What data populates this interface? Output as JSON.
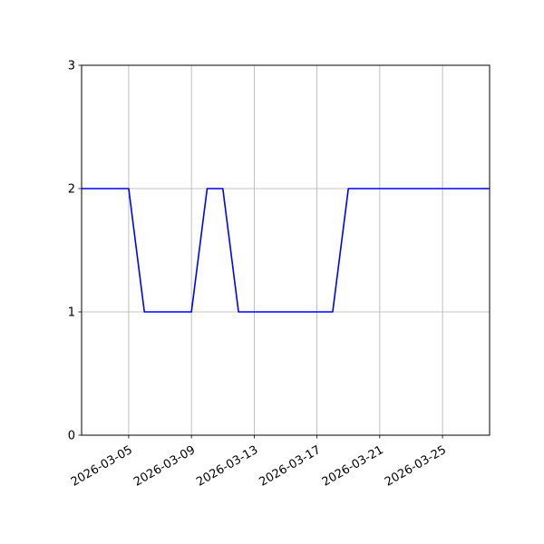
{
  "chart_data": {
    "type": "line",
    "title": "",
    "xlabel": "",
    "ylabel": "",
    "grid": true,
    "x_ticks": [
      "2026-03-05",
      "2026-03-09",
      "2026-03-13",
      "2026-03-17",
      "2026-03-21",
      "2026-03-25"
    ],
    "y_ticks": [
      "0",
      "1",
      "2",
      "3"
    ],
    "xlim": [
      "2026-03-02",
      "2026-03-28"
    ],
    "ylim": [
      0,
      3
    ],
    "series": [
      {
        "color": "#0000ff",
        "x": [
          "2026-03-02",
          "2026-03-03",
          "2026-03-04",
          "2026-03-05",
          "2026-03-06",
          "2026-03-07",
          "2026-03-08",
          "2026-03-09",
          "2026-03-10",
          "2026-03-11",
          "2026-03-12",
          "2026-03-13",
          "2026-03-14",
          "2026-03-15",
          "2026-03-16",
          "2026-03-17",
          "2026-03-18",
          "2026-03-19",
          "2026-03-20",
          "2026-03-21",
          "2026-03-22",
          "2026-03-23",
          "2026-03-24",
          "2026-03-25",
          "2026-03-26",
          "2026-03-27",
          "2026-03-28"
        ],
        "values": [
          2,
          2,
          2,
          2,
          1,
          1,
          1,
          1,
          2,
          2,
          1,
          1,
          1,
          1,
          1,
          1,
          1,
          2,
          2,
          2,
          2,
          2,
          2,
          2,
          2,
          2,
          2
        ]
      }
    ]
  }
}
